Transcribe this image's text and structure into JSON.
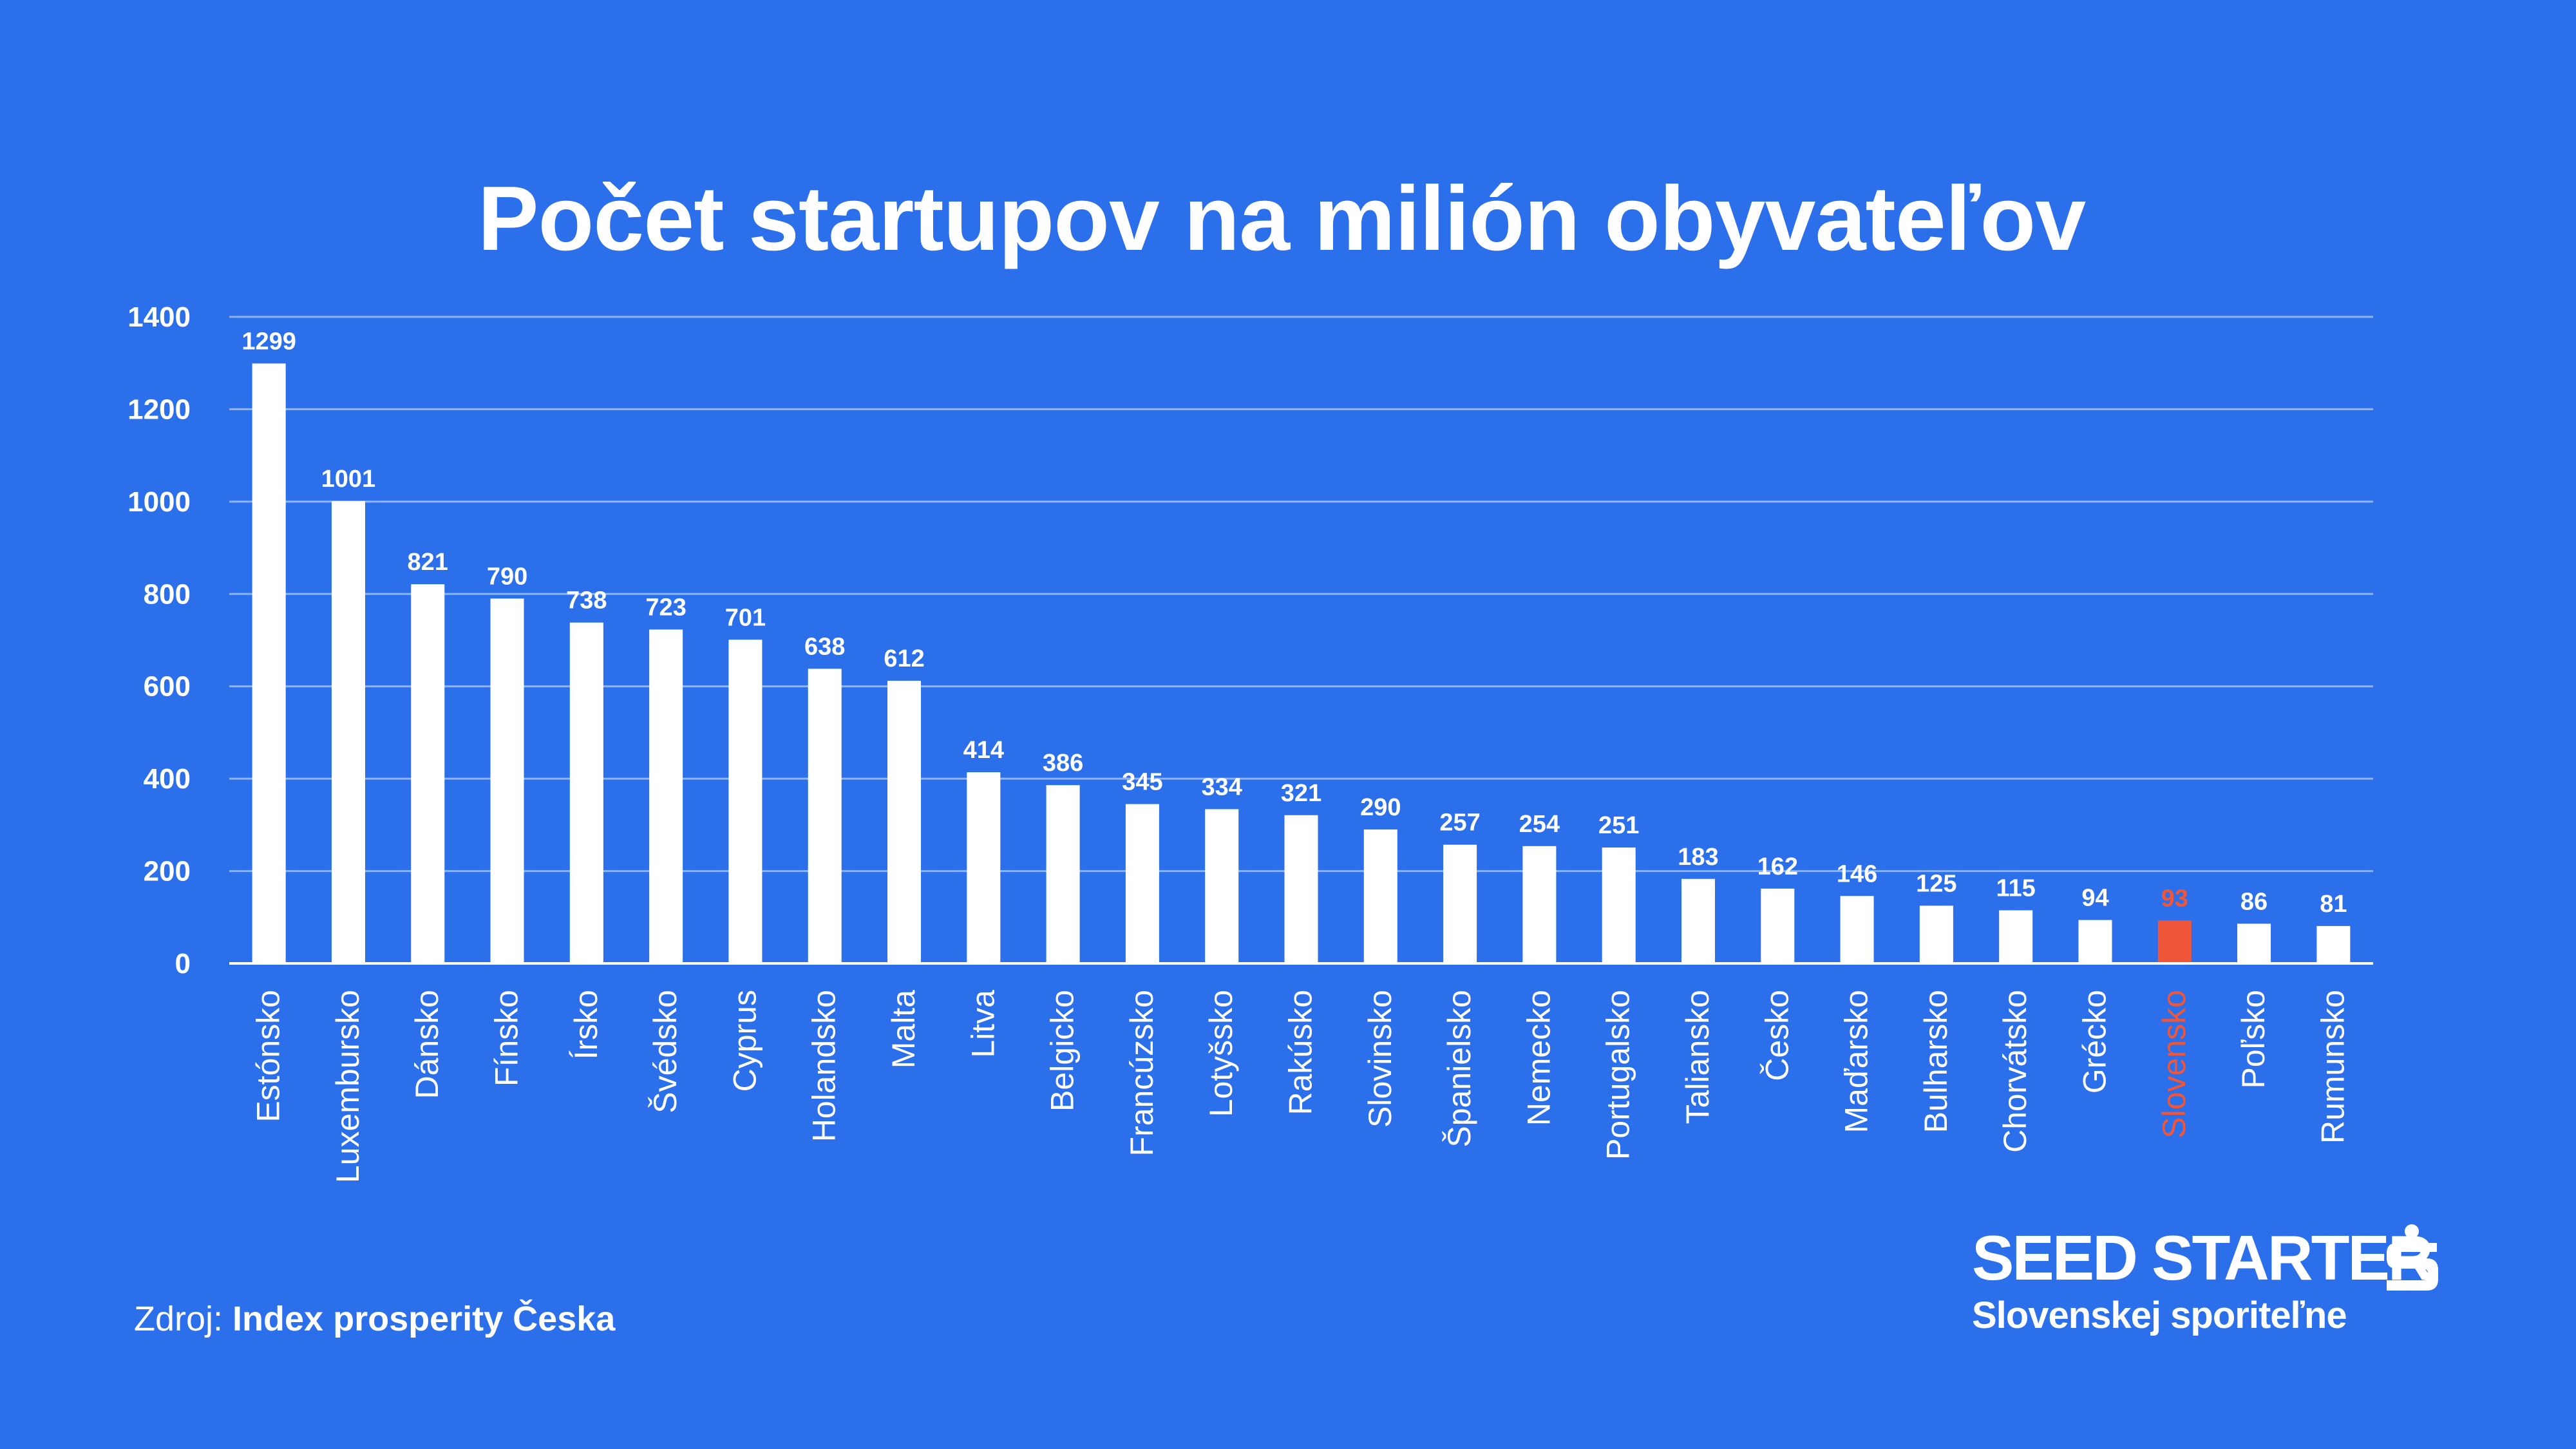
{
  "source": {
    "prefix": "Zdroj: ",
    "name": "Index prosperity Česka"
  },
  "brand": {
    "name": "SEED STARTER",
    "subtitle": "Slovenskej sporiteľne",
    "logo_icon": "sporitelna-s-logo-icon"
  },
  "colors": {
    "background": "#2B6FEA",
    "bar": "#FFFFFF",
    "highlight": "#F0563A",
    "text": "#FFFFFF",
    "grid": "#8FB4F4"
  },
  "chart_data": {
    "type": "bar",
    "title": "Počet startupov na milión obyvateľov",
    "xlabel": "",
    "ylabel": "",
    "ylim": [
      0,
      1400
    ],
    "yticks": [
      0,
      200,
      400,
      600,
      800,
      1000,
      1200,
      1400
    ],
    "grid": true,
    "highlight_category": "Slovensko",
    "categories": [
      "Estónsko",
      "Luxembursko",
      "Dánsko",
      "Fínsko",
      "Írsko",
      "Švédsko",
      "Cyprus",
      "Holandsko",
      "Malta",
      "Litva",
      "Belgicko",
      "Francúzsko",
      "Lotyšsko",
      "Rakúsko",
      "Slovinsko",
      "Španielsko",
      "Nemecko",
      "Portugalsko",
      "Taliansko",
      "Česko",
      "Maďarsko",
      "Bulharsko",
      "Chorvátsko",
      "Grécko",
      "Slovensko",
      "Poľsko",
      "Rumunsko"
    ],
    "values": [
      1299,
      1001,
      821,
      790,
      738,
      723,
      701,
      638,
      612,
      414,
      386,
      345,
      334,
      321,
      290,
      257,
      254,
      251,
      183,
      162,
      146,
      125,
      115,
      94,
      93,
      86,
      81
    ]
  }
}
